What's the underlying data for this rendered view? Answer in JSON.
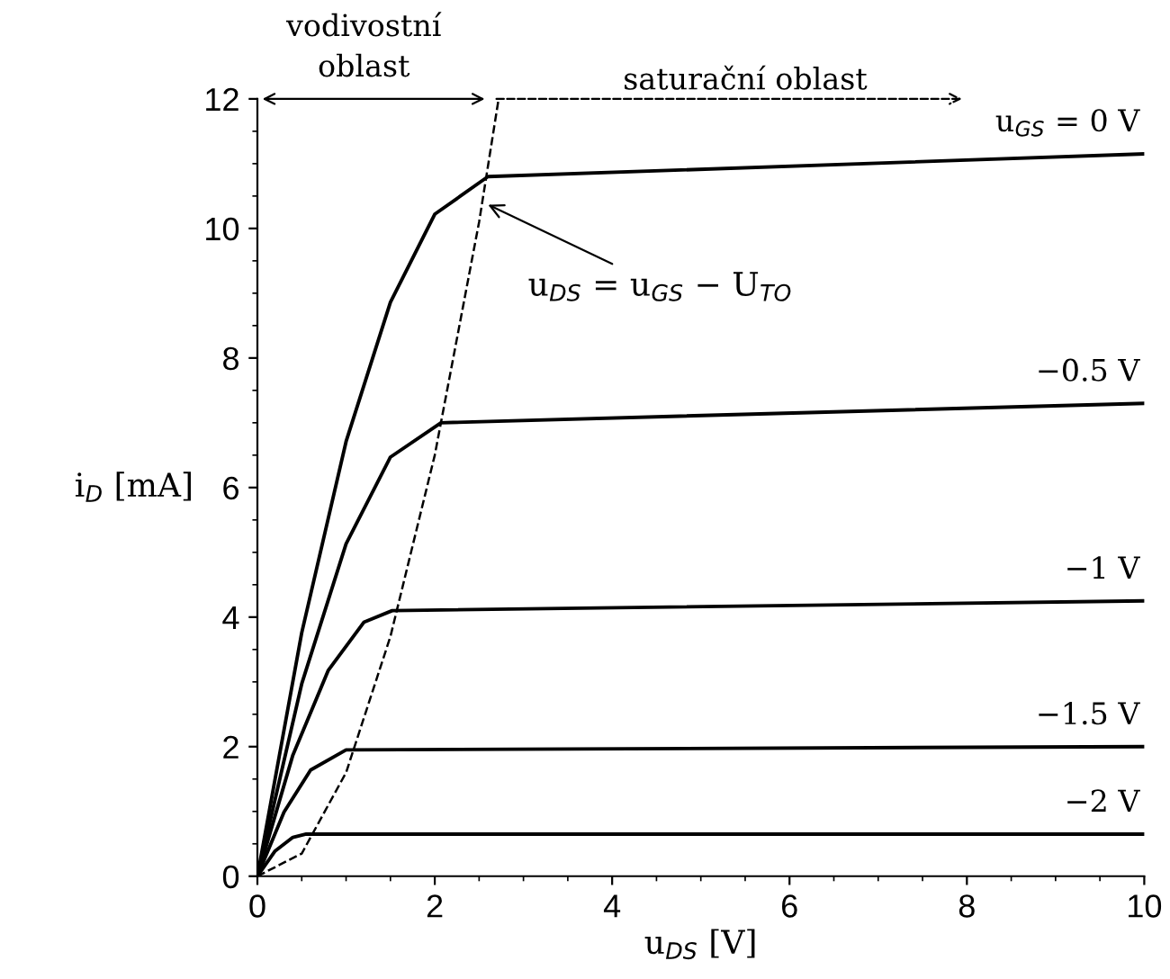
{
  "chart_data": {
    "type": "line",
    "xlabel": "u$_{DS}$ [V]",
    "ylabel": "i$_{D}$ [mA]",
    "xlim": [
      0,
      10
    ],
    "ylim": [
      0,
      12
    ],
    "xticks": [
      0,
      2,
      4,
      6,
      8,
      10
    ],
    "yticks": [
      0,
      2,
      4,
      6,
      8,
      10,
      12
    ],
    "grid": false,
    "legend": false,
    "marker": "none",
    "line_style": "solid",
    "series": [
      {
        "name": "u$_{GS}$ = 0 V",
        "color": "#000000",
        "x": [
          0,
          0.5,
          1,
          1.5,
          2,
          2.6,
          10
        ],
        "values": [
          0,
          3.76,
          6.71,
          8.86,
          10.22,
          10.8,
          11.15
        ]
      },
      {
        "name": "−0.5 V",
        "color": "#000000",
        "x": [
          0,
          0.5,
          1,
          1.5,
          2.07,
          10
        ],
        "values": [
          0,
          2.97,
          5.13,
          6.47,
          7.0,
          7.3
        ]
      },
      {
        "name": "−1 V",
        "color": "#000000",
        "x": [
          0,
          0.4,
          0.8,
          1.2,
          1.52,
          10
        ],
        "values": [
          0,
          1.87,
          3.18,
          3.92,
          4.1,
          4.25
        ]
      },
      {
        "name": "−1.5 V",
        "color": "#000000",
        "x": [
          0,
          0.3,
          0.6,
          1.0,
          10
        ],
        "values": [
          0,
          0.99,
          1.64,
          1.95,
          2.0
        ]
      },
      {
        "name": "−2 V",
        "color": "#000000",
        "x": [
          0,
          0.2,
          0.4,
          0.55,
          10
        ],
        "values": [
          0,
          0.39,
          0.6,
          0.65,
          0.65
        ]
      },
      {
        "color": "#000000",
        "line_style": "dashed",
        "x": [
          0,
          0.5,
          1,
          1.5,
          2,
          2.5,
          2.72
        ],
        "values": [
          0,
          0.35,
          1.6,
          3.7,
          6.5,
          10.1,
          12
        ]
      }
    ],
    "annotations": [
      "vodivostní oblast",
      "saturační oblast",
      {
        "text": "u$_{DS}$ = u$_{GS}$ − U$_{TO}$",
        "x": 2.55,
        "y": 10.4
      }
    ]
  }
}
